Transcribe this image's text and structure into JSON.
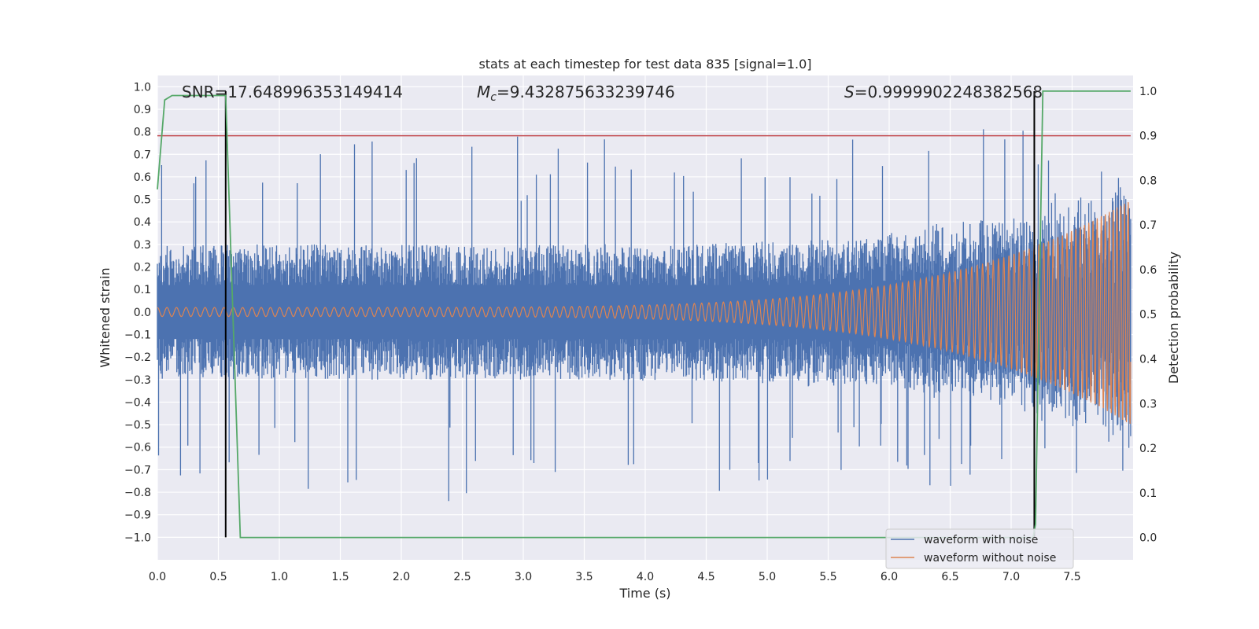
{
  "chart_data": {
    "type": "line",
    "title": "stats at each timestep for test data 835 [signal=1.0]",
    "xlabel": "Time (s)",
    "ylabel_left": "Whitened strain",
    "ylabel_right": "Detection probability",
    "xlim": [
      0.0,
      8.0
    ],
    "ylim_left": [
      -1.1,
      1.05
    ],
    "ylim_right": [
      -0.05,
      1.035
    ],
    "x_ticks": [
      "0.0",
      "0.5",
      "1.0",
      "1.5",
      "2.0",
      "2.5",
      "3.0",
      "3.5",
      "4.0",
      "4.5",
      "5.0",
      "5.5",
      "6.0",
      "6.5",
      "7.0",
      "7.5"
    ],
    "y_left_ticks": [
      "1.0",
      "0.9",
      "0.8",
      "0.7",
      "0.6",
      "0.5",
      "0.4",
      "0.3",
      "0.2",
      "0.1",
      "0.0",
      "−0.1",
      "−0.2",
      "−0.3",
      "−0.4",
      "−0.5",
      "−0.6",
      "−0.7",
      "−0.8",
      "−0.9",
      "−1.0"
    ],
    "y_right_ticks": [
      "1.0",
      "0.9",
      "0.8",
      "0.7",
      "0.6",
      "0.5",
      "0.4",
      "0.3",
      "0.2",
      "0.1",
      "0.0"
    ],
    "annotations": {
      "snr": "SNR=17.648996353149414",
      "mc_symbol": "M",
      "mc_sub": "c",
      "mc_value": "=9.432875633239746",
      "s_symbol": "S",
      "s_value": "=0.9999902248382568"
    },
    "threshold": {
      "value": 0.9,
      "axis": "right",
      "color": "#c44e52"
    },
    "vertical_markers": [
      0.56,
      7.19
    ],
    "series": [
      {
        "name": "waveform with noise",
        "color": "#4c72b0",
        "axis": "left",
        "envelope_max": 0.3,
        "spike_peaks": [
          0.65,
          0.7,
          0.75,
          0.78,
          0.82,
          0.85
        ]
      },
      {
        "name": "waveform without noise",
        "color": "#dd8452",
        "axis": "left",
        "amplitude_start": 0.02,
        "amplitude_end": 0.5
      },
      {
        "name": "detection probability",
        "color": "#55a868",
        "axis": "right",
        "x": [
          0.0,
          0.06,
          0.12,
          0.55,
          0.56,
          0.68,
          7.18,
          7.2,
          7.26,
          7.98
        ],
        "y": [
          0.78,
          0.98,
          0.99,
          0.99,
          0.99,
          0.0,
          0.0,
          0.03,
          1.0,
          1.0
        ]
      }
    ],
    "legend": {
      "placement": "lower-right",
      "entries": [
        {
          "label": "waveform with noise",
          "color": "#4c72b0"
        },
        {
          "label": "waveform without noise",
          "color": "#dd8452"
        }
      ]
    }
  }
}
